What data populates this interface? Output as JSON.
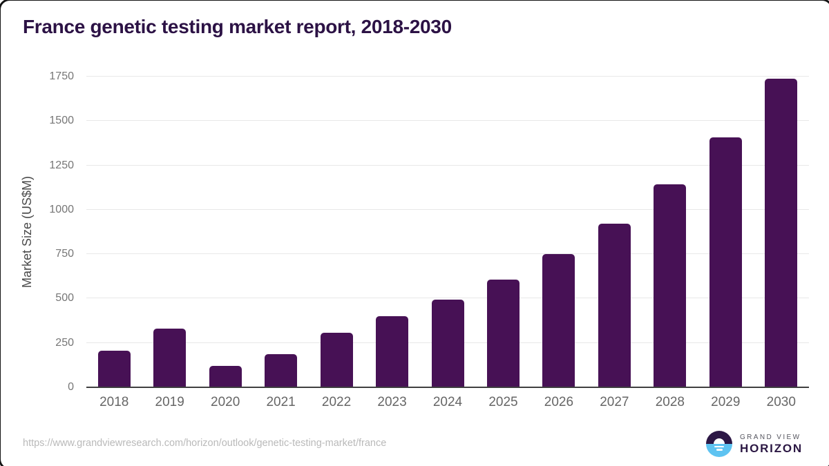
{
  "chart_data": {
    "type": "bar",
    "title": "France genetic testing market report, 2018-2030",
    "categories": [
      "2018",
      "2019",
      "2020",
      "2021",
      "2022",
      "2023",
      "2024",
      "2025",
      "2026",
      "2027",
      "2028",
      "2029",
      "2030"
    ],
    "values": [
      208,
      330,
      120,
      187,
      308,
      400,
      495,
      607,
      750,
      921,
      1143,
      1408,
      1738
    ],
    "xlabel": "",
    "ylabel": "Market Size (US$M)",
    "ylim": [
      0,
      1750
    ],
    "yticks": [
      0,
      250,
      500,
      750,
      1000,
      1250,
      1500,
      1750
    ],
    "grid": true,
    "legend_position": "none",
    "bar_color": "#471155"
  },
  "colors": {
    "title_text": "#2c1245",
    "bar": "#471155",
    "gridline": "#e8e8e8",
    "axis_line": "#3f3f3f",
    "tick_text": "#767676",
    "logo_dark_purple": "#2c1745",
    "logo_light_blue": "#5ec3f1"
  },
  "footer": {
    "source_url": "https://www.grandviewresearch.com/horizon/outlook/genetic-testing-market/france",
    "logo": {
      "top": "GRAND VIEW",
      "bottom": "HORIZON"
    }
  }
}
